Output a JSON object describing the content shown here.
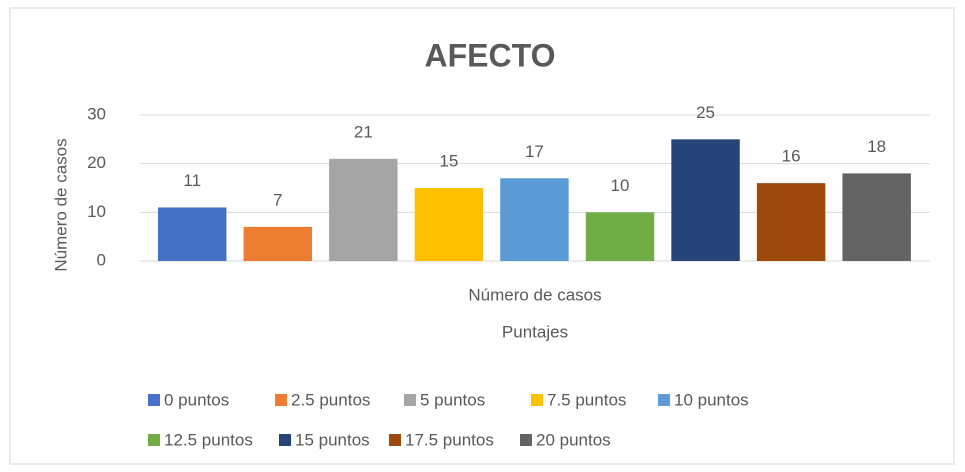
{
  "chart_data": {
    "type": "bar",
    "title": "AFECTO",
    "categories": [
      "Número de casos"
    ],
    "xlabel": "Puntajes",
    "ylabel": "Número de casos",
    "series": [
      {
        "name": "0 puntos",
        "color": "#4472c4",
        "values": [
          11
        ]
      },
      {
        "name": "2.5 puntos",
        "color": "#ed7d31",
        "values": [
          7
        ]
      },
      {
        "name": "5 puntos",
        "color": "#a5a5a5",
        "values": [
          21
        ]
      },
      {
        "name": "7.5 puntos",
        "color": "#ffc000",
        "values": [
          15
        ]
      },
      {
        "name": "10 puntos",
        "color": "#5b9bd5",
        "values": [
          17
        ]
      },
      {
        "name": "12.5 puntos",
        "color": "#70ad47",
        "values": [
          10
        ]
      },
      {
        "name": "15 puntos",
        "color": "#264478",
        "values": [
          25
        ]
      },
      {
        "name": "17.5 puntos",
        "color": "#9e480e",
        "values": [
          16
        ]
      },
      {
        "name": "20 puntos",
        "color": "#636363",
        "values": [
          18
        ]
      }
    ],
    "ylim": [
      0,
      30
    ],
    "yticks": [
      0,
      10,
      20,
      30
    ],
    "grid": true,
    "legend": "bottom"
  }
}
